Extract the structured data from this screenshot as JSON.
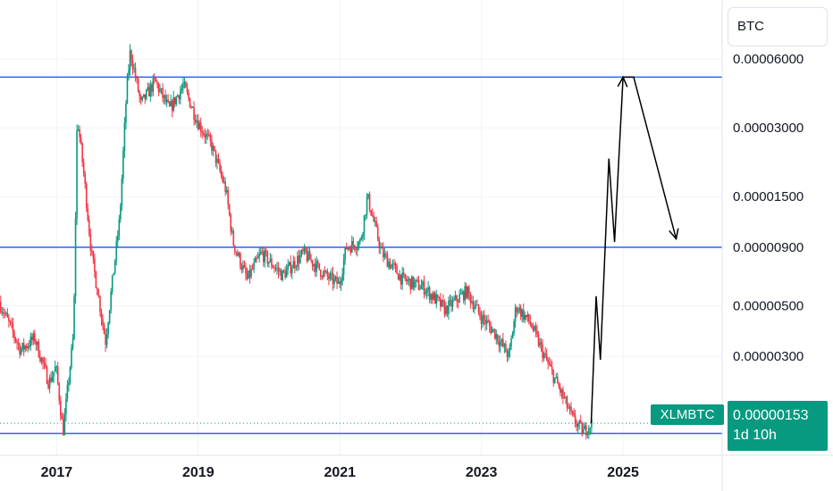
{
  "chart_data": {
    "type": "candlestick",
    "title": "",
    "ylabel": "",
    "xlabel": "",
    "y_scale": "log",
    "ylim": [
      1.35e-06,
      8.3e-05
    ],
    "xlim": [
      2016.2,
      2026.4
    ],
    "currency": "BTC",
    "symbol": "XLMBTC",
    "last_price": "0.00000153",
    "countdown": "1d 10h",
    "y_ticks": [
      {
        "value": 6e-05,
        "label": "0.00006000"
      },
      {
        "value": 3e-05,
        "label": "0.00003000"
      },
      {
        "value": 1.5e-05,
        "label": "0.00001500"
      },
      {
        "value": 9e-06,
        "label": "0.00000900"
      },
      {
        "value": 5e-06,
        "label": "0.00000500"
      },
      {
        "value": 3e-06,
        "label": "0.00000300"
      }
    ],
    "x_ticks": [
      {
        "value": 2017,
        "label": "2017"
      },
      {
        "value": 2019,
        "label": "2019"
      },
      {
        "value": 2021,
        "label": "2021"
      },
      {
        "value": 2023,
        "label": "2023"
      },
      {
        "value": 2025,
        "label": "2025"
      }
    ],
    "horizontal_levels": [
      5e-05,
      9e-06,
      1.38e-06
    ],
    "price_path": [
      [
        2016.2,
        5.2e-06
      ],
      [
        2016.5,
        3.2e-06
      ],
      [
        2016.7,
        3.6e-06
      ],
      [
        2016.9,
        2.3e-06
      ],
      [
        2017.0,
        2.7e-06
      ],
      [
        2017.1,
        1.4e-06
      ],
      [
        2017.25,
        3.8e-06
      ],
      [
        2017.3,
        3.4e-05
      ],
      [
        2017.4,
        1.8e-05
      ],
      [
        2017.5,
        8.5e-06
      ],
      [
        2017.6,
        5.5e-06
      ],
      [
        2017.7,
        3.5e-06
      ],
      [
        2017.8,
        6.5e-06
      ],
      [
        2017.9,
        1.2e-05
      ],
      [
        2018.0,
        4.5e-05
      ],
      [
        2018.05,
        6.5e-05
      ],
      [
        2018.2,
        3.8e-05
      ],
      [
        2018.4,
        4.8e-05
      ],
      [
        2018.6,
        3.6e-05
      ],
      [
        2018.8,
        4.6e-05
      ],
      [
        2019.0,
        3.2e-05
      ],
      [
        2019.2,
        2.5e-05
      ],
      [
        2019.4,
        1.6e-05
      ],
      [
        2019.5,
        9.5e-06
      ],
      [
        2019.7,
        6.5e-06
      ],
      [
        2019.9,
        8.5e-06
      ],
      [
        2020.2,
        6.8e-06
      ],
      [
        2020.5,
        8.5e-06
      ],
      [
        2020.8,
        6.8e-06
      ],
      [
        2021.0,
        6.2e-06
      ],
      [
        2021.1,
        9e-06
      ],
      [
        2021.3,
        9.5e-06
      ],
      [
        2021.4,
        1.5e-05
      ],
      [
        2021.6,
        8.5e-06
      ],
      [
        2021.9,
        6.5e-06
      ],
      [
        2022.2,
        6e-06
      ],
      [
        2022.5,
        4.8e-06
      ],
      [
        2022.8,
        5.8e-06
      ],
      [
        2023.0,
        4.5e-06
      ],
      [
        2023.2,
        3.8e-06
      ],
      [
        2023.4,
        3e-06
      ],
      [
        2023.5,
        5e-06
      ],
      [
        2023.7,
        4.2e-06
      ],
      [
        2023.9,
        3e-06
      ],
      [
        2024.1,
        2.2e-06
      ],
      [
        2024.3,
        1.6e-06
      ],
      [
        2024.45,
        1.4e-06
      ],
      [
        2024.55,
        1.53e-06
      ]
    ],
    "projection_path": [
      [
        2024.55,
        1.53e-06
      ],
      [
        2024.62,
        5.5e-06
      ],
      [
        2024.68,
        2.9e-06
      ],
      [
        2024.8,
        2.2e-05
      ],
      [
        2024.88,
        9.5e-06
      ],
      [
        2025.0,
        5e-05
      ],
      [
        2025.15,
        5e-05
      ],
      [
        2025.75,
        9.8e-06
      ]
    ],
    "colors": {
      "up": "#089981",
      "down": "#f23645",
      "level": "#2962ff",
      "current": "#089981"
    }
  }
}
